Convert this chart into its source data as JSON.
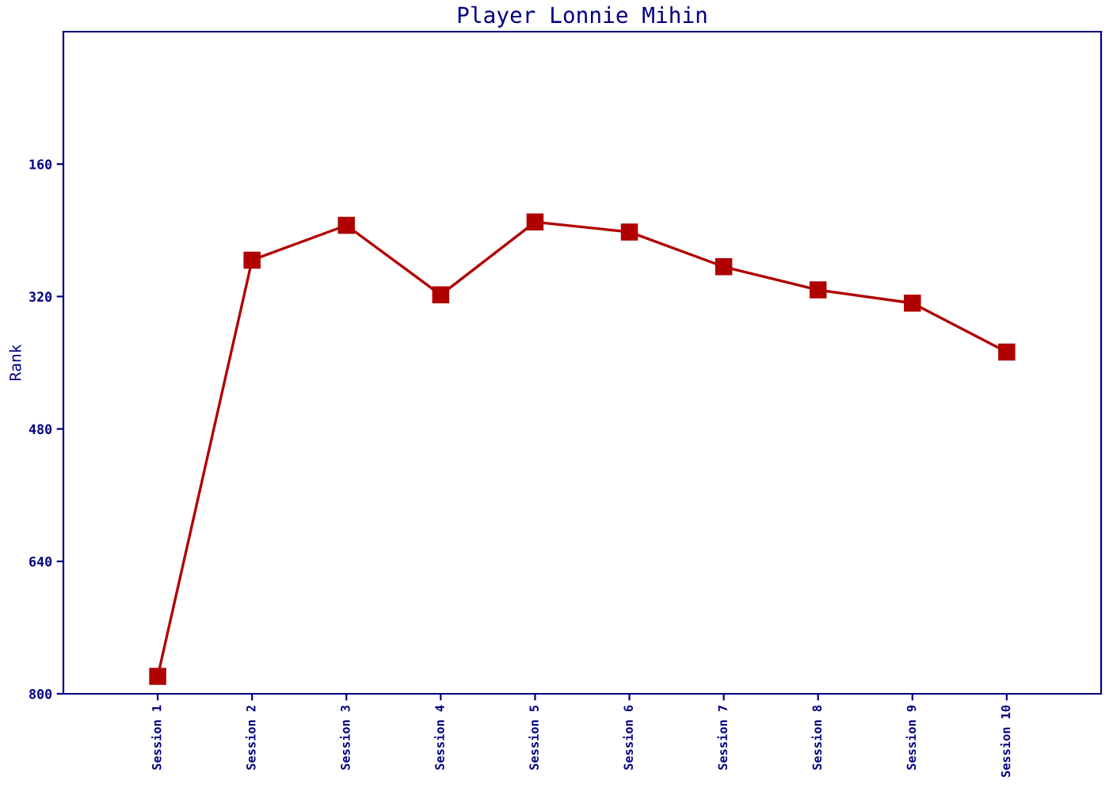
{
  "chart_data": {
    "type": "line",
    "title": "Player Lonnie Mihin",
    "ylabel": "Rank",
    "categories": [
      "Session 1",
      "Session 2",
      "Session 3",
      "Session 4",
      "Session 5",
      "Session 6",
      "Session 7",
      "Session 8",
      "Session 9",
      "Session 10"
    ],
    "series": [
      {
        "color": "#b00000",
        "values": [
          779,
          276,
          234,
          318,
          230,
          242,
          284,
          312,
          328,
          387
        ]
      }
    ],
    "ylim": [
      800,
      0
    ],
    "yticks": [
      160,
      320,
      480,
      640,
      800
    ],
    "grid": false,
    "marker": "square",
    "line_style": "solid"
  }
}
